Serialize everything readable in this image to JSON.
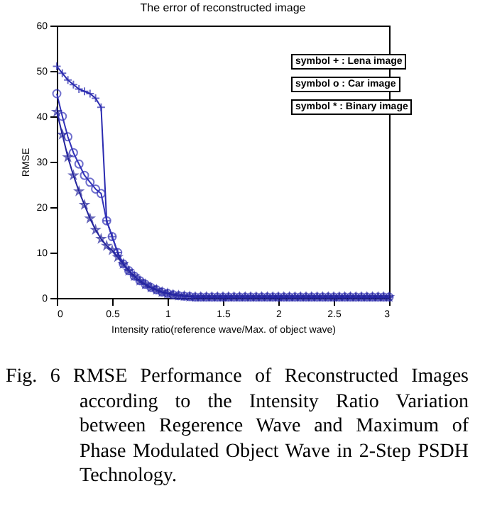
{
  "chart_data": {
    "type": "line",
    "title": "The error of reconstructed image",
    "xlabel": "Intensity ratio(reference wave/Max. of object wave)",
    "ylabel": "RMSE",
    "x": [
      0,
      0.05,
      0.1,
      0.15,
      0.2,
      0.25,
      0.3,
      0.35,
      0.4,
      0.45,
      0.5,
      0.55,
      0.6,
      0.65,
      0.7,
      0.75,
      0.8,
      0.85,
      0.9,
      0.95,
      1,
      1.05,
      1.1,
      1.15,
      1.2,
      1.25,
      1.3,
      1.35,
      1.4,
      1.45,
      1.5,
      1.55,
      1.6,
      1.65,
      1.7,
      1.75,
      1.8,
      1.85,
      1.9,
      1.95,
      2,
      2.05,
      2.1,
      2.15,
      2.2,
      2.25,
      2.3,
      2.35,
      2.4,
      2.45,
      2.5,
      2.55,
      2.6,
      2.65,
      2.7,
      2.75,
      2.8,
      2.85,
      2.9,
      2.95,
      3
    ],
    "series": [
      {
        "color": "#2b2bb0",
        "marker": "cross",
        "values": [
          51,
          49.5,
          48,
          47,
          46,
          45.5,
          45,
          44,
          42,
          17,
          13.5,
          10,
          7.5,
          6,
          4.8,
          3.8,
          3,
          2.3,
          1.8,
          1.3,
          1,
          0.7,
          0.5,
          0.4,
          0.3,
          0.2,
          0.2,
          0.2,
          0.2,
          0.2,
          0.2,
          0.2,
          0.2,
          0.2,
          0.2,
          0.2,
          0.2,
          0.2,
          0.2,
          0.2,
          0.2,
          0.2,
          0.2,
          0.2,
          0.2,
          0.2,
          0.2,
          0.2,
          0.2,
          0.2,
          0.2,
          0.2,
          0.2,
          0.2,
          0.2,
          0.2,
          0.2,
          0.2,
          0.2,
          0.2,
          0.2
        ]
      },
      {
        "color": "#3333b8",
        "marker": "circle",
        "values": [
          45,
          40,
          35.5,
          32,
          29.5,
          27,
          25.5,
          24,
          23,
          17,
          13.5,
          10,
          7.5,
          6,
          4.8,
          3.8,
          3,
          2.3,
          1.8,
          1.3,
          1,
          0.7,
          0.5,
          0.4,
          0.3,
          0.2,
          0.2,
          0.2,
          0.2,
          0.2,
          0.2,
          0.2,
          0.2,
          0.2,
          0.2,
          0.2,
          0.2,
          0.2,
          0.2,
          0.2,
          0.2,
          0.2,
          0.2,
          0.2,
          0.2,
          0.2,
          0.2,
          0.2,
          0.2,
          0.2,
          0.2,
          0.2,
          0.2,
          0.2,
          0.2,
          0.2,
          0.2,
          0.2,
          0.2,
          0.2,
          0.2
        ]
      },
      {
        "color": "#24249c",
        "marker": "star",
        "values": [
          41,
          36,
          31,
          27,
          23.5,
          20.5,
          17.5,
          15,
          13,
          11.5,
          10.5,
          9,
          7.5,
          6,
          4.8,
          3.8,
          3,
          2.3,
          1.8,
          1.3,
          1,
          0.7,
          0.5,
          0.4,
          0.3,
          0.2,
          0.2,
          0.2,
          0.2,
          0.2,
          0.2,
          0.2,
          0.2,
          0.2,
          0.2,
          0.2,
          0.2,
          0.2,
          0.2,
          0.2,
          0.2,
          0.2,
          0.2,
          0.2,
          0.2,
          0.2,
          0.2,
          0.2,
          0.2,
          0.2,
          0.2,
          0.2,
          0.2,
          0.2,
          0.2,
          0.2,
          0.2,
          0.2,
          0.2,
          0.2,
          0.2
        ]
      }
    ],
    "xlim": [
      0,
      3
    ],
    "xticks": [
      0,
      0.5,
      1,
      1.5,
      2,
      2.5,
      3
    ],
    "ylim": [
      0,
      60
    ],
    "yticks": [
      0,
      10,
      20,
      30,
      40,
      50,
      60
    ],
    "annotations": [
      "symbol + : Lena image",
      "symbol o : Car image",
      "symbol * : Binary image",
      "Fig. 6 RMSE Performance of Reconstructed Images according to the Intensity Ratio Variation between Regerence Wave and Maximum of Phase Modulated Object Wave in 2-Step PSDH Technology."
    ]
  }
}
